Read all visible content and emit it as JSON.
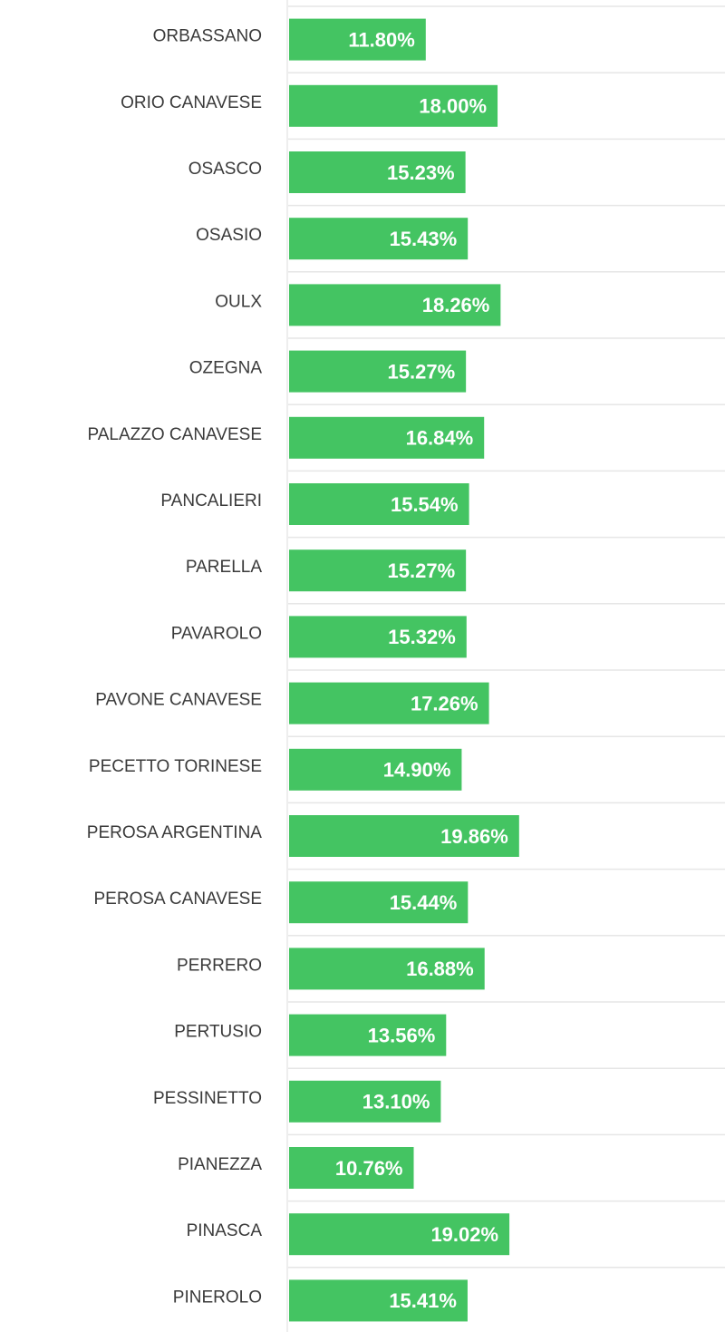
{
  "chart_data": {
    "type": "bar",
    "orientation": "horizontal",
    "categories": [
      "ORBASSANO",
      "ORIO CANAVESE",
      "OSASCO",
      "OSASIO",
      "OULX",
      "OZEGNA",
      "PALAZZO CANAVESE",
      "PANCALIERI",
      "PARELLA",
      "PAVAROLO",
      "PAVONE CANAVESE",
      "PECETTO TORINESE",
      "PEROSA ARGENTINA",
      "PEROSA CANAVESE",
      "PERRERO",
      "PERTUSIO",
      "PESSINETTO",
      "PIANEZZA",
      "PINASCA",
      "PINEROLO"
    ],
    "values": [
      11.8,
      18.0,
      15.23,
      15.43,
      18.26,
      15.27,
      16.84,
      15.54,
      15.27,
      15.32,
      17.26,
      14.9,
      19.86,
      15.44,
      16.88,
      13.56,
      13.1,
      10.76,
      19.02,
      15.41
    ],
    "value_labels": [
      "11.80%",
      "18.00%",
      "15.23%",
      "15.43%",
      "18.26%",
      "15.27%",
      "16.84%",
      "15.54%",
      "15.27%",
      "15.32%",
      "17.26%",
      "14.90%",
      "19.86%",
      "15.44%",
      "16.88%",
      "13.56%",
      "13.10%",
      "10.76%",
      "19.02%",
      "15.41%"
    ],
    "title": "",
    "xlabel": "",
    "ylabel": "",
    "grid": "horizontal row separators",
    "colors": {
      "bar": "#44c462",
      "value_text": "#ffffff",
      "category_text": "#3a3a3a",
      "separator": "#e6e6e6",
      "axis": "#dcdcdc"
    }
  }
}
